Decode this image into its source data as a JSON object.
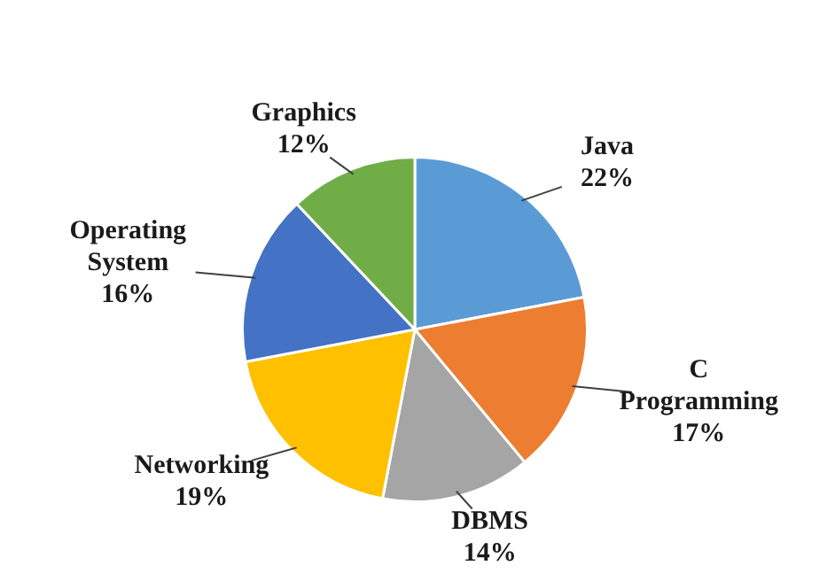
{
  "chart_data": {
    "type": "pie",
    "categories": [
      "Java",
      "C Programming",
      "DBMS",
      "Networking",
      "Operating System",
      "Graphics"
    ],
    "values": [
      22,
      17,
      14,
      19,
      16,
      12
    ],
    "value_labels": [
      "22%",
      "17%",
      "14%",
      "19%",
      "16%",
      "12%"
    ],
    "colors": [
      "#5b9bd5",
      "#ed7d31",
      "#a5a5a5",
      "#ffc000",
      "#4472c4",
      "#70ad47"
    ]
  }
}
